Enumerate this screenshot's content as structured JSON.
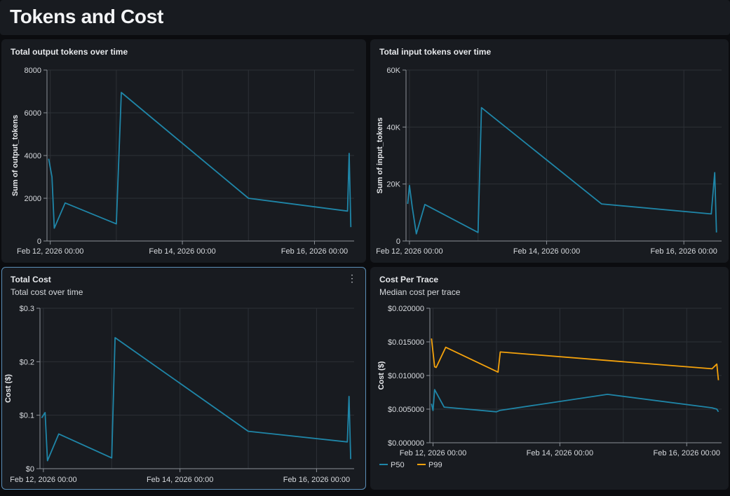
{
  "page": {
    "title": "Tokens and Cost"
  },
  "panels": {
    "output": {
      "title": "Total output tokens over time",
      "subtitle": ""
    },
    "input": {
      "title": "Total input tokens over time",
      "subtitle": ""
    },
    "cost": {
      "title": "Total Cost",
      "subtitle": "Total cost over time",
      "menu_icon": "kebab-menu-icon"
    },
    "per_trace": {
      "title": "Cost Per Trace",
      "subtitle": "Median cost per trace"
    }
  },
  "colors": {
    "p50": "#1f86a8",
    "p99": "#f4a20c",
    "grid": "#2c3036",
    "axis": "#8b9097"
  },
  "chart_data": [
    {
      "id": "output",
      "type": "line",
      "title": "Total output tokens over time",
      "xlabel": "",
      "ylabel": "Sum of output_tokens",
      "xlim": [
        -0.1,
        9.2
      ],
      "ylim": [
        0,
        8000
      ],
      "yticks": [
        0,
        2000,
        4000,
        6000,
        8000
      ],
      "ytick_labels": [
        "0",
        "2000",
        "4000",
        "6000",
        "8000"
      ],
      "xticks": [
        0,
        4,
        8
      ],
      "xtick_labels": [
        "Feb 12, 2026 00:00",
        "Feb 14, 2026 00:00",
        "Feb 16, 2026 00:00"
      ],
      "xgrid": [
        0,
        2,
        4,
        6,
        8
      ],
      "series": [
        {
          "name": "output_tokens",
          "color": "#1f86a8",
          "x": [
            -0.05,
            0.05,
            0.12,
            0.45,
            2.0,
            2.15,
            6.0,
            9.0,
            9.05,
            9.1
          ],
          "y": [
            3850,
            3000,
            600,
            1780,
            800,
            6950,
            2000,
            1400,
            4100,
            650
          ]
        }
      ]
    },
    {
      "id": "input",
      "type": "line",
      "title": "Total input tokens over time",
      "xlabel": "",
      "ylabel": "Sum of input_tokens",
      "xlim": [
        -0.1,
        9.1
      ],
      "ylim": [
        0,
        60000
      ],
      "yticks": [
        0,
        20000,
        40000,
        60000
      ],
      "ytick_labels": [
        "0",
        "20K",
        "40K",
        "60K"
      ],
      "xticks": [
        0,
        4,
        8
      ],
      "xtick_labels": [
        "Feb 12, 2026 00:00",
        "Feb 14, 2026 00:00",
        "Feb 16, 2026 00:00"
      ],
      "xgrid": [
        0,
        2,
        4,
        6,
        8
      ],
      "series": [
        {
          "name": "input_tokens",
          "color": "#1f86a8",
          "x": [
            -0.05,
            0.0,
            0.08,
            0.2,
            0.45,
            2.0,
            2.1,
            5.6,
            8.8,
            8.9,
            8.95
          ],
          "y": [
            13000,
            19500,
            12000,
            2500,
            12800,
            3000,
            46800,
            13000,
            9500,
            24000,
            3000
          ]
        }
      ]
    },
    {
      "id": "cost",
      "type": "line",
      "title": "Total Cost",
      "xlabel": "",
      "ylabel": "Cost ($)",
      "xlim": [
        -0.1,
        9.1
      ],
      "ylim": [
        0,
        0.3
      ],
      "yticks": [
        0,
        0.1,
        0.2,
        0.3
      ],
      "ytick_labels": [
        "$0",
        "$0.1",
        "$0.2",
        "$0.3"
      ],
      "xticks": [
        0,
        4,
        8
      ],
      "xtick_labels": [
        "Feb 12, 2026 00:00",
        "Feb 14, 2026 00:00",
        "Feb 16, 2026 00:00"
      ],
      "xgrid": [
        0,
        2,
        4,
        6,
        8
      ],
      "series": [
        {
          "name": "cost",
          "color": "#1f86a8",
          "x": [
            -0.05,
            0.05,
            0.12,
            0.45,
            2.0,
            2.1,
            6.0,
            8.9,
            8.95,
            9.0
          ],
          "y": [
            0.095,
            0.105,
            0.015,
            0.065,
            0.02,
            0.245,
            0.07,
            0.05,
            0.135,
            0.018
          ]
        }
      ]
    },
    {
      "id": "per_trace",
      "type": "line",
      "title": "Cost Per Trace",
      "xlabel": "",
      "ylabel": "Cost ($)",
      "xlim": [
        -0.1,
        9.1
      ],
      "ylim": [
        0,
        0.02
      ],
      "yticks": [
        0,
        0.005,
        0.01,
        0.015,
        0.02
      ],
      "ytick_labels": [
        "$0.000000",
        "$0.005000",
        "$0.010000",
        "$0.015000",
        "$0.020000"
      ],
      "xticks": [
        0,
        4,
        8
      ],
      "xtick_labels": [
        "Feb 12, 2026 00:00",
        "Feb 14, 2026 00:00",
        "Feb 16, 2026 00:00"
      ],
      "xgrid": [
        0,
        2,
        4,
        6,
        8
      ],
      "legend": "bottom-left",
      "series": [
        {
          "name": "P50",
          "color": "#1f86a8",
          "x": [
            -0.05,
            0.0,
            0.05,
            0.35,
            2.0,
            2.1,
            5.5,
            8.8,
            8.95,
            9.0
          ],
          "y": [
            0.0058,
            0.0048,
            0.0079,
            0.0053,
            0.0046,
            0.0048,
            0.0072,
            0.0052,
            0.005,
            0.0046
          ]
        },
        {
          "name": "P99",
          "color": "#f4a20c",
          "x": [
            -0.05,
            0.05,
            0.1,
            0.4,
            2.05,
            2.12,
            8.8,
            8.95,
            9.0
          ],
          "y": [
            0.0155,
            0.0113,
            0.0112,
            0.0142,
            0.0105,
            0.0135,
            0.011,
            0.0117,
            0.0093
          ]
        }
      ]
    }
  ]
}
